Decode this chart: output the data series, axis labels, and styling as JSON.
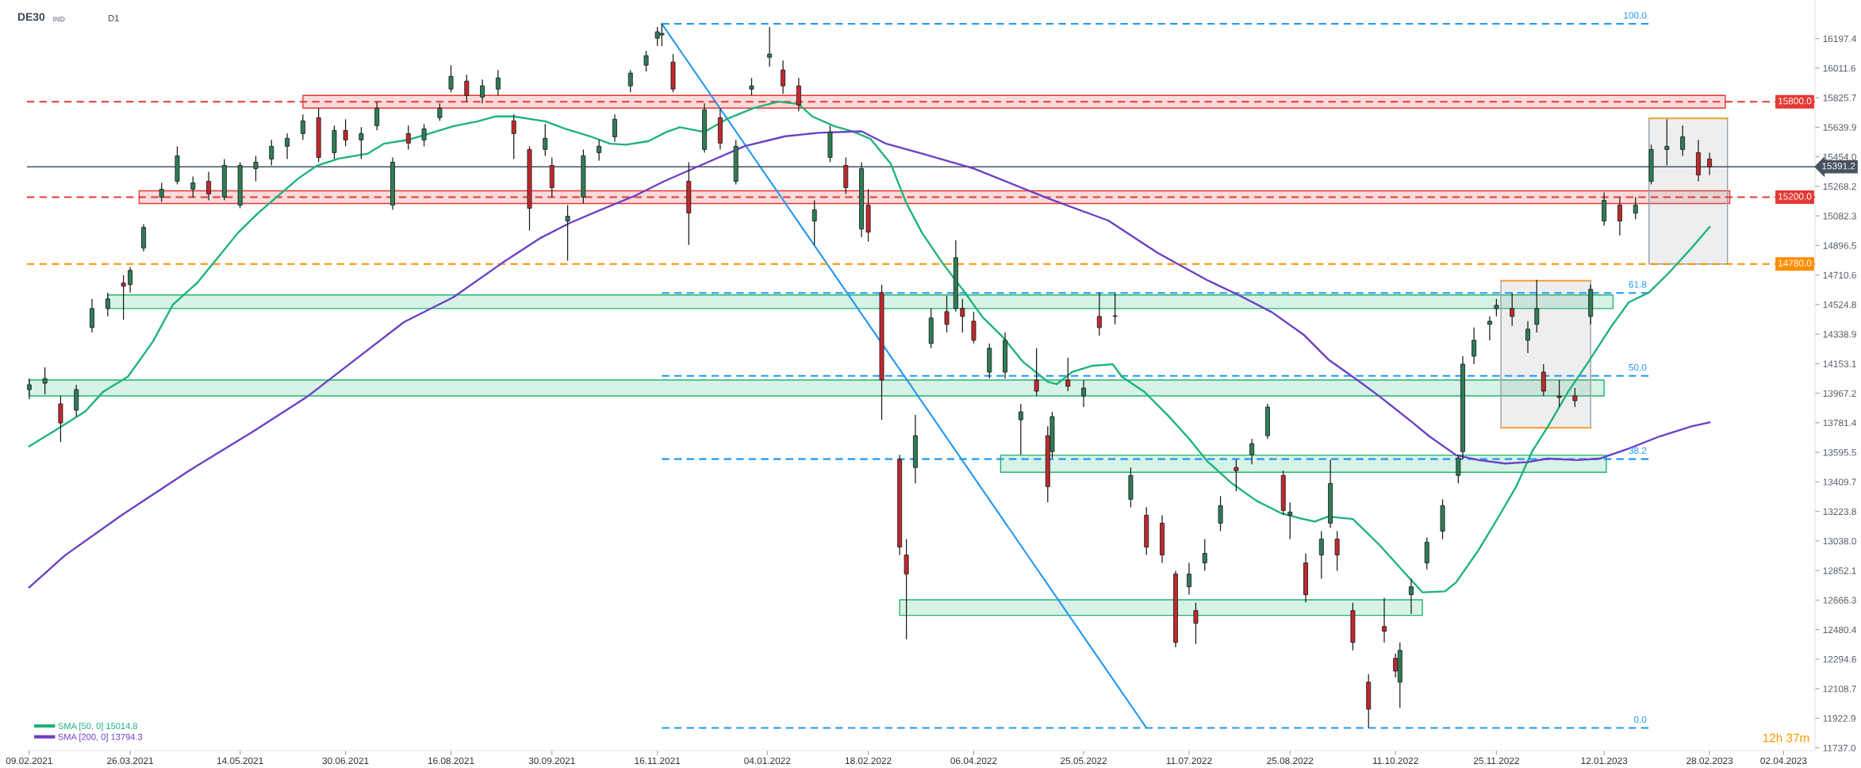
{
  "chart_data": {
    "type": "candlestick",
    "title": "DE30",
    "subtitle": "IND",
    "annotations": [
      "D1",
      "12h 37m",
      {
        "text": "100.0",
        "x": "2023-02-01",
        "y": 16290
      },
      {
        "text": "61.8",
        "x": "2023-02-01",
        "y": 14598
      },
      {
        "text": "50.0",
        "x": "2023-02-01",
        "y": 14076
      },
      {
        "text": "38.2",
        "x": "2023-02-01",
        "y": 13553
      },
      {
        "text": "0.0",
        "x": "2023-02-01",
        "y": 11862
      }
    ],
    "x": [
      "2021-02-09",
      "2021-02-16",
      "2021-02-23",
      "2021-03-02",
      "2021-03-09",
      "2021-03-16",
      "2021-03-23",
      "2021-03-26",
      "2021-04-01",
      "2021-04-09",
      "2021-04-16",
      "2021-04-23",
      "2021-04-30",
      "2021-05-07",
      "2021-05-14",
      "2021-05-21",
      "2021-05-28",
      "2021-06-04",
      "2021-06-11",
      "2021-06-18",
      "2021-06-25",
      "2021-06-30",
      "2021-07-07",
      "2021-07-14",
      "2021-07-21",
      "2021-07-28",
      "2021-08-04",
      "2021-08-11",
      "2021-08-16",
      "2021-08-23",
      "2021-08-30",
      "2021-09-06",
      "2021-09-13",
      "2021-09-20",
      "2021-09-27",
      "2021-09-30",
      "2021-10-07",
      "2021-10-14",
      "2021-10-21",
      "2021-10-28",
      "2021-11-04",
      "2021-11-11",
      "2021-11-16",
      "2021-11-18",
      "2021-11-23",
      "2021-11-30",
      "2021-12-07",
      "2021-12-14",
      "2021-12-21",
      "2021-12-28",
      "2022-01-05",
      "2022-01-11",
      "2022-01-18",
      "2022-01-25",
      "2022-02-01",
      "2022-02-08",
      "2022-02-15",
      "2022-02-18",
      "2022-02-24",
      "2022-03-04",
      "2022-03-07",
      "2022-03-11",
      "2022-03-18",
      "2022-03-25",
      "2022-03-29",
      "2022-04-01",
      "2022-04-06",
      "2022-04-13",
      "2022-04-20",
      "2022-04-27",
      "2022-05-04",
      "2022-05-09",
      "2022-05-11",
      "2022-05-18",
      "2022-05-25",
      "2022-06-01",
      "2022-06-08",
      "2022-06-15",
      "2022-06-22",
      "2022-06-29",
      "2022-07-05",
      "2022-07-11",
      "2022-07-14",
      "2022-07-18",
      "2022-07-25",
      "2022-08-01",
      "2022-08-08",
      "2022-08-15",
      "2022-08-22",
      "2022-08-25",
      "2022-09-01",
      "2022-09-08",
      "2022-09-12",
      "2022-09-15",
      "2022-09-22",
      "2022-09-29",
      "2022-10-06",
      "2022-10-11",
      "2022-10-13",
      "2022-10-18",
      "2022-10-25",
      "2022-11-01",
      "2022-11-08",
      "2022-11-10",
      "2022-11-15",
      "2022-11-22",
      "2022-11-25",
      "2022-12-02",
      "2022-12-09",
      "2022-12-13",
      "2022-12-16",
      "2022-12-23",
      "2022-12-30",
      "2023-01-06",
      "2023-01-12",
      "2023-01-19",
      "2023-01-26",
      "2023-02-02",
      "2023-02-09",
      "2023-02-16",
      "2023-02-23",
      "2023-02-28"
    ],
    "ohlc": [
      [
        13990,
        14060,
        13930,
        14020
      ],
      [
        14030,
        14130,
        13960,
        14060
      ],
      [
        13900,
        13950,
        13660,
        13780
      ],
      [
        13860,
        14020,
        13820,
        13990
      ],
      [
        14380,
        14560,
        14350,
        14500
      ],
      [
        14500,
        14600,
        14450,
        14560
      ],
      [
        14660,
        14710,
        14430,
        14640
      ],
      [
        14650,
        14760,
        14600,
        14740
      ],
      [
        14880,
        15030,
        14860,
        15010
      ],
      [
        15200,
        15290,
        15170,
        15250
      ],
      [
        15300,
        15520,
        15280,
        15460
      ],
      [
        15250,
        15330,
        15200,
        15290
      ],
      [
        15300,
        15360,
        15180,
        15220
      ],
      [
        15200,
        15440,
        15180,
        15400
      ],
      [
        15150,
        15420,
        15130,
        15400
      ],
      [
        15380,
        15460,
        15300,
        15420
      ],
      [
        15440,
        15560,
        15400,
        15520
      ],
      [
        15520,
        15600,
        15440,
        15570
      ],
      [
        15600,
        15720,
        15560,
        15680
      ],
      [
        15700,
        15760,
        15420,
        15450
      ],
      [
        15480,
        15650,
        15440,
        15620
      ],
      [
        15620,
        15690,
        15520,
        15560
      ],
      [
        15560,
        15640,
        15440,
        15600
      ],
      [
        15650,
        15800,
        15620,
        15760
      ],
      [
        15150,
        15450,
        15120,
        15420
      ],
      [
        15600,
        15650,
        15500,
        15540
      ],
      [
        15560,
        15660,
        15520,
        15630
      ],
      [
        15700,
        15790,
        15680,
        15760
      ],
      [
        15880,
        16030,
        15860,
        15960
      ],
      [
        15930,
        15970,
        15800,
        15840
      ],
      [
        15830,
        15940,
        15790,
        15900
      ],
      [
        15880,
        16000,
        15840,
        15950
      ],
      [
        15680,
        15720,
        15440,
        15600
      ],
      [
        15500,
        15520,
        14990,
        15130
      ],
      [
        15500,
        15660,
        15460,
        15570
      ],
      [
        15400,
        15450,
        15200,
        15260
      ],
      [
        15050,
        15150,
        14800,
        15080
      ],
      [
        15200,
        15500,
        15160,
        15460
      ],
      [
        15480,
        15560,
        15430,
        15520
      ],
      [
        15580,
        15720,
        15550,
        15690
      ],
      [
        15900,
        16000,
        15860,
        15980
      ],
      [
        16030,
        16120,
        15990,
        16090
      ],
      [
        16200,
        16270,
        16150,
        16240
      ],
      [
        16220,
        16290,
        16150,
        16230
      ],
      [
        16050,
        16100,
        15860,
        15880
      ],
      [
        15300,
        15420,
        14900,
        15100
      ],
      [
        15500,
        15790,
        15480,
        15750
      ],
      [
        15700,
        15760,
        15500,
        15540
      ],
      [
        15300,
        15560,
        15280,
        15520
      ],
      [
        15880,
        15950,
        15840,
        15900
      ],
      [
        16080,
        16270,
        16020,
        16100
      ],
      [
        16000,
        16060,
        15850,
        15900
      ],
      [
        15900,
        15950,
        15740,
        15780
      ],
      [
        15050,
        15180,
        14900,
        15120
      ],
      [
        15450,
        15650,
        15420,
        15610
      ],
      [
        15400,
        15450,
        15220,
        15260
      ],
      [
        15000,
        15420,
        14950,
        15380
      ],
      [
        15150,
        15250,
        14920,
        14980
      ],
      [
        14600,
        14650,
        13800,
        14050
      ],
      [
        13550,
        13580,
        12950,
        13000
      ],
      [
        12950,
        13050,
        12420,
        12830
      ],
      [
        13500,
        13830,
        13400,
        13700
      ],
      [
        14280,
        14500,
        14250,
        14440
      ],
      [
        14480,
        14580,
        14350,
        14400
      ],
      [
        14500,
        14930,
        14480,
        14820
      ],
      [
        14500,
        14560,
        14350,
        14450
      ],
      [
        14420,
        14480,
        14280,
        14300
      ],
      [
        14100,
        14280,
        14060,
        14250
      ],
      [
        14100,
        14350,
        14060,
        14300
      ],
      [
        13800,
        13900,
        13580,
        13850
      ],
      [
        14050,
        14250,
        13950,
        13980
      ],
      [
        13700,
        13760,
        13280,
        13380
      ],
      [
        13600,
        13850,
        13560,
        13820
      ],
      [
        14050,
        14190,
        13980,
        14010
      ],
      [
        13950,
        14050,
        13880,
        14000
      ],
      [
        14450,
        14600,
        14330,
        14380
      ],
      [
        14450,
        14600,
        14400,
        14450
      ],
      [
        13300,
        13500,
        13250,
        13450
      ],
      [
        13200,
        13250,
        12950,
        13000
      ],
      [
        13150,
        13200,
        12900,
        12950
      ],
      [
        12830,
        12850,
        12370,
        12400
      ],
      [
        12750,
        12900,
        12700,
        12830
      ],
      [
        12600,
        12650,
        12390,
        12520
      ],
      [
        12900,
        13050,
        12850,
        12960
      ],
      [
        13150,
        13320,
        13100,
        13260
      ],
      [
        13500,
        13550,
        13350,
        13480
      ],
      [
        13580,
        13680,
        13520,
        13650
      ],
      [
        13700,
        13900,
        13680,
        13880
      ],
      [
        13450,
        13480,
        13200,
        13230
      ],
      [
        13200,
        13280,
        13050,
        13220
      ],
      [
        12900,
        12960,
        12650,
        12700
      ],
      [
        12950,
        13100,
        12800,
        13050
      ],
      [
        13150,
        13550,
        13120,
        13400
      ],
      [
        13050,
        13100,
        12850,
        12950
      ],
      [
        12600,
        12650,
        12350,
        12400
      ],
      [
        12150,
        12200,
        11862,
        11980
      ],
      [
        12500,
        12680,
        12400,
        12470
      ],
      [
        12300,
        12330,
        12180,
        12220
      ],
      [
        12150,
        12400,
        11990,
        12350
      ],
      [
        12700,
        12800,
        12580,
        12750
      ],
      [
        12900,
        13060,
        12860,
        13030
      ],
      [
        13100,
        13300,
        13050,
        13260
      ],
      [
        13450,
        13580,
        13400,
        13560
      ],
      [
        13600,
        14200,
        13550,
        14150
      ],
      [
        14200,
        14380,
        14150,
        14300
      ],
      [
        14400,
        14450,
        14300,
        14420
      ],
      [
        14500,
        14560,
        14450,
        14520
      ],
      [
        14500,
        14600,
        14390,
        14450
      ],
      [
        14300,
        14420,
        14220,
        14370
      ],
      [
        14400,
        14680,
        14350,
        14500
      ],
      [
        14100,
        14150,
        13950,
        13980
      ],
      [
        13950,
        14050,
        13880,
        13940
      ],
      [
        13950,
        14000,
        13880,
        13920
      ],
      [
        14450,
        14650,
        14400,
        14620
      ],
      [
        15050,
        15230,
        15020,
        15180
      ],
      [
        15150,
        15200,
        14960,
        15050
      ],
      [
        15100,
        15200,
        15060,
        15150
      ],
      [
        15300,
        15530,
        15280,
        15500
      ],
      [
        15500,
        15690,
        15400,
        15520
      ],
      [
        15500,
        15650,
        15460,
        15580
      ],
      [
        15480,
        15560,
        15300,
        15340
      ],
      [
        15440,
        15480,
        15340,
        15391.2
      ]
    ],
    "series": [
      {
        "type": "line",
        "color": "#e53935",
        "x": [
          "2021-06-11",
          "2023-03-07"
        ],
        "values": [
          null,
          null
        ],
        "lower": [
          15760,
          15760
        ],
        "upper": [
          15840,
          15840
        ]
      },
      {
        "type": "line",
        "color": "#e53935",
        "x": [
          "2021-03-30",
          "2023-03-09"
        ],
        "values": [
          null,
          null
        ],
        "lower": [
          15160,
          15160
        ],
        "upper": [
          15240,
          15240
        ]
      },
      {
        "type": "line",
        "color": "#22b573",
        "x": [
          "2021-03-16",
          "2023-01-16"
        ],
        "values": [
          null,
          null
        ],
        "lower": [
          14500,
          14500
        ],
        "upper": [
          14585,
          14585
        ]
      },
      {
        "type": "line",
        "color": "#22b573",
        "x": [
          "2021-02-09",
          "2023-01-12"
        ],
        "values": [
          null,
          null
        ],
        "lower": [
          13950,
          13950
        ],
        "upper": [
          14050,
          14050
        ]
      },
      {
        "type": "line",
        "color": "#22b573",
        "x": [
          "2022-04-18",
          "2023-01-13"
        ],
        "values": [
          null,
          null
        ],
        "lower": [
          13470,
          13470
        ],
        "upper": [
          13578,
          13578
        ]
      },
      {
        "type": "line",
        "color": "#22b573",
        "x": [
          "2022-03-04",
          "2022-10-23"
        ],
        "values": [
          null,
          null
        ],
        "lower": [
          12570,
          12570
        ],
        "upper": [
          12668,
          12668
        ]
      },
      {
        "type": "line",
        "color": "#9aa0a6",
        "x": [
          "2022-11-27",
          "2023-01-06"
        ],
        "values": [
          null,
          null
        ],
        "lower": [
          13750,
          13750
        ],
        "upper": [
          14675,
          14675
        ]
      },
      {
        "type": "line",
        "color": "#9aa0a6",
        "x": [
          "2023-02-01",
          "2023-03-08"
        ],
        "values": [
          null,
          null
        ],
        "lower": [
          14780,
          14780
        ],
        "upper": [
          15695,
          15695
        ]
      },
      {
        "type": "line",
        "color": "#f7a440",
        "x": [
          "2022-11-27",
          "2023-01-06"
        ],
        "values": [
          14675,
          14675
        ]
      },
      {
        "type": "line",
        "color": "#f7a440",
        "x": [
          "2022-11-27",
          "2023-01-06"
        ],
        "values": [
          13750,
          13750
        ]
      },
      {
        "type": "line",
        "color": "#f7a440",
        "x": [
          "2023-02-01",
          "2023-03-08"
        ],
        "values": [
          15695,
          15695
        ]
      },
      {
        "type": "line",
        "color": "#2196f3",
        "line_style": "dashed",
        "x": [
          "2021-11-18",
          "2023-02-01"
        ],
        "values": [
          16290,
          16290
        ]
      },
      {
        "type": "line",
        "color": "#2196f3",
        "line_style": "dashed",
        "x": [
          "2021-11-18",
          "2023-02-01"
        ],
        "values": [
          14598,
          14598
        ]
      },
      {
        "type": "line",
        "color": "#2196f3",
        "line_style": "dashed",
        "x": [
          "2021-11-18",
          "2023-02-01"
        ],
        "values": [
          14076,
          14076
        ]
      },
      {
        "type": "line",
        "color": "#2196f3",
        "line_style": "dashed",
        "x": [
          "2021-11-18",
          "2023-02-01"
        ],
        "values": [
          13553,
          13553
        ]
      },
      {
        "type": "line",
        "color": "#2196f3",
        "line_style": "dashed",
        "x": [
          "2021-11-18",
          "2023-02-01"
        ],
        "values": [
          11862,
          11862
        ]
      },
      {
        "type": "line",
        "color": "#2196f3",
        "x": [
          "2021-11-18",
          "2022-06-22"
        ],
        "values": [
          16290,
          11862
        ]
      },
      {
        "type": "line",
        "name": "SMA [50, 0] 15014.8",
        "color": "#1cb37a",
        "x": [
          "2021-02-09",
          "2021-02-20",
          "2021-03-06",
          "2021-03-14",
          "2021-03-25",
          "2021-04-05",
          "2021-04-14",
          "2021-04-25",
          "2021-05-04",
          "2021-05-13",
          "2021-05-22",
          "2021-05-31",
          "2021-06-09",
          "2021-06-17",
          "2021-06-27",
          "2021-07-10",
          "2021-07-17",
          "2021-07-28",
          "2021-08-06",
          "2021-08-17",
          "2021-08-28",
          "2021-09-05",
          "2021-09-13",
          "2021-09-20",
          "2021-09-27",
          "2021-10-06",
          "2021-10-17",
          "2021-10-26",
          "2021-11-02",
          "2021-11-12",
          "2021-11-20",
          "2021-11-26",
          "2021-12-07",
          "2021-12-17",
          "2021-12-29",
          "2022-01-09",
          "2022-01-18",
          "2022-01-24",
          "2022-02-03",
          "2022-02-11",
          "2022-02-19",
          "2022-02-28",
          "2022-03-07",
          "2022-03-14",
          "2022-03-23",
          "2022-04-02",
          "2022-04-10",
          "2022-04-19",
          "2022-04-28",
          "2022-05-09",
          "2022-05-13",
          "2022-05-20",
          "2022-05-29",
          "2022-06-07",
          "2022-06-11",
          "2022-06-21",
          "2022-07-02",
          "2022-07-11",
          "2022-07-19",
          "2022-07-30",
          "2022-08-10",
          "2022-08-21",
          "2022-08-29",
          "2022-09-05",
          "2022-09-11",
          "2022-09-22",
          "2022-10-04",
          "2022-10-15",
          "2022-10-23",
          "2022-11-02",
          "2022-11-07",
          "2022-11-17",
          "2022-11-25",
          "2022-12-04",
          "2022-12-11",
          "2022-12-18",
          "2022-12-27",
          "2023-01-05",
          "2023-01-15",
          "2023-01-23",
          "2023-02-01",
          "2023-02-10",
          "2023-02-20",
          "2023-02-28"
        ],
        "values": [
          13634,
          13728,
          13853,
          13977,
          14071,
          14289,
          14523,
          14663,
          14819,
          14975,
          15100,
          15209,
          15318,
          15396,
          15443,
          15474,
          15536,
          15561,
          15599,
          15646,
          15677,
          15708,
          15708,
          15692,
          15677,
          15630,
          15583,
          15536,
          15530,
          15552,
          15610,
          15640,
          15610,
          15692,
          15761,
          15801,
          15786,
          15708,
          15646,
          15614,
          15567,
          15411,
          15162,
          14975,
          14788,
          14601,
          14445,
          14320,
          14164,
          14040,
          14024,
          14102,
          14140,
          14149,
          14071,
          13977,
          13821,
          13681,
          13541,
          13401,
          13291,
          13213,
          13182,
          13160,
          13191,
          13176,
          13011,
          12839,
          12715,
          12721,
          12777,
          12980,
          13167,
          13385,
          13603,
          13759,
          13977,
          14164,
          14383,
          14539,
          14601,
          14726,
          14881,
          15012
        ]
      },
      {
        "type": "line",
        "name": "SMA [200, 0] 13794.3",
        "color": "#6c3fc6",
        "x": [
          "2021-02-09",
          "2021-02-25",
          "2021-03-22",
          "2021-04-21",
          "2021-05-20",
          "2021-06-13",
          "2021-07-03",
          "2021-07-26",
          "2021-08-17",
          "2021-09-08",
          "2021-09-25",
          "2021-10-08",
          "2021-10-21",
          "2021-11-06",
          "2021-11-19",
          "2021-12-07",
          "2021-12-25",
          "2022-01-12",
          "2022-01-27",
          "2022-02-15",
          "2022-02-26",
          "2022-03-14",
          "2022-04-06",
          "2022-05-09",
          "2022-06-05",
          "2022-06-27",
          "2022-07-19",
          "2022-08-02",
          "2022-08-17",
          "2022-08-31",
          "2022-09-11",
          "2022-09-25",
          "2022-10-04",
          "2022-10-18",
          "2022-10-26",
          "2022-11-07",
          "2022-11-17",
          "2022-11-29",
          "2022-12-09",
          "2022-12-18",
          "2022-12-31",
          "2023-01-10",
          "2023-01-23",
          "2023-02-06",
          "2023-02-20",
          "2023-02-28"
        ],
        "values": [
          12746,
          12948,
          13198,
          13478,
          13728,
          13946,
          14164,
          14414,
          14570,
          14788,
          14944,
          15038,
          15116,
          15209,
          15300,
          15411,
          15521,
          15583,
          15605,
          15614,
          15536,
          15474,
          15380,
          15193,
          15053,
          14850,
          14679,
          14585,
          14476,
          14336,
          14180,
          14040,
          13946,
          13790,
          13697,
          13578,
          13547,
          13525,
          13534,
          13556,
          13547,
          13556,
          13619,
          13697,
          13759,
          13784
        ]
      }
    ],
    "ref_lines": [
      {
        "axis": "y",
        "value": 15800,
        "label": "15800.0",
        "color": "#e53935",
        "line_style": "dashed"
      },
      {
        "axis": "y",
        "value": 15200,
        "label": "15200.0",
        "color": "#e53935",
        "line_style": "dashed"
      },
      {
        "axis": "y",
        "value": 14780,
        "label": "14780.0",
        "color": "#ff8f00",
        "line_style": "dashed"
      },
      {
        "axis": "y",
        "value": 15391.2,
        "label": "15391.2",
        "color": "#46525e",
        "line_style": "solid"
      }
    ],
    "xlim": [
      "2021-02-08",
      "2023-04-16"
    ],
    "xticks": [
      {
        "value": "2021-02-09",
        "label": "09.02.2021"
      },
      {
        "value": "2021-03-26",
        "label": "26.03.2021"
      },
      {
        "value": "2021-05-14",
        "label": "14.05.2021"
      },
      {
        "value": "2021-06-30",
        "label": "30.06.2021"
      },
      {
        "value": "2021-08-16",
        "label": "16.08.2021"
      },
      {
        "value": "2021-09-30",
        "label": "30.09.2021"
      },
      {
        "value": "2021-11-16",
        "label": "16.11.2021"
      },
      {
        "value": "2022-01-04",
        "label": "04.01.2022"
      },
      {
        "value": "2022-02-18",
        "label": "18.02.2022"
      },
      {
        "value": "2022-04-06",
        "label": "06.04.2022"
      },
      {
        "value": "2022-05-25",
        "label": "25.05.2022"
      },
      {
        "value": "2022-07-11",
        "label": "11.07.2022"
      },
      {
        "value": "2022-08-25",
        "label": "25.08.2022"
      },
      {
        "value": "2022-10-11",
        "label": "11.10.2022"
      },
      {
        "value": "2022-11-25",
        "label": "25.11.2022"
      },
      {
        "value": "2023-01-12",
        "label": "12.01.2023"
      },
      {
        "value": "2023-02-28",
        "label": "28.02.2023"
      },
      {
        "value": "2023-04-02",
        "label": "02.04.2023"
      }
    ],
    "ylim": [
      11720,
      16440
    ],
    "yticks": [
      16197.4,
      16011.6,
      15825.7,
      15639.9,
      {
        "value": 15454,
        "label": "15454.0"
      },
      15268.2,
      15082.3,
      14896.5,
      14710.6,
      14524.8,
      14338.9,
      14153.1,
      13967.2,
      13781.4,
      13595.5,
      13409.7,
      13223.8,
      {
        "value": 13038,
        "label": "13038.0"
      },
      12852.1,
      12666.3,
      12480.4,
      12294.6,
      12108.7,
      11922.9,
      {
        "value": 11737,
        "label": "11737.0"
      }
    ],
    "legend": "bottom left"
  }
}
